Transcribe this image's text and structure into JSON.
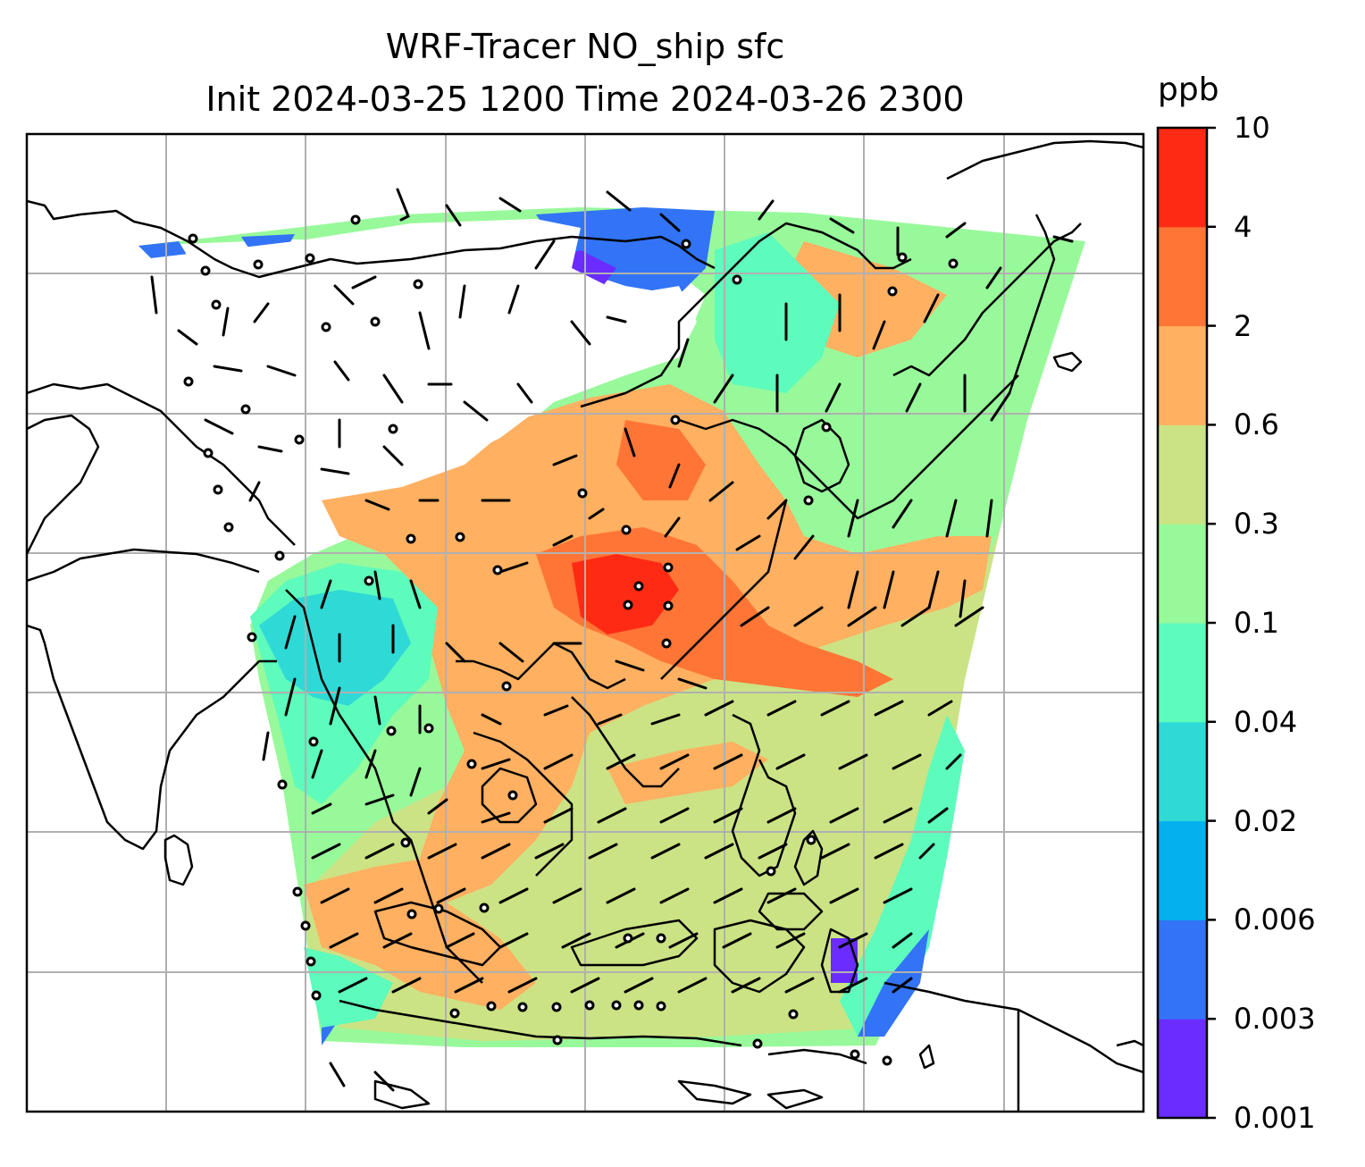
{
  "title": {
    "line1": "WRF-Tracer NO_ship sfc",
    "line2": "Init 2024-03-25 1200 Time 2024-03-26 2300"
  },
  "colorbar": {
    "unit": "ppb",
    "ticks": [
      "0.001",
      "0.003",
      "0.006",
      "0.02",
      "0.04",
      "0.1",
      "0.3",
      "0.6",
      "2",
      "4",
      "10"
    ],
    "colors": [
      "#6a2cff",
      "#3274f5",
      "#05b0ee",
      "#2fd9d6",
      "#5dfbbc",
      "#98f99a",
      "#cbe384",
      "#ffb061",
      "#ff7536",
      "#ff2a14"
    ]
  },
  "map": {
    "field": "NO_ship surface concentration",
    "palette_low_to_high": [
      "#6a2cff",
      "#3274f5",
      "#05b0ee",
      "#2fd9d6",
      "#5dfbbc",
      "#98f99a",
      "#cbe384",
      "#ffb061",
      "#ff7536",
      "#ff2a14"
    ],
    "gridlines": true,
    "coastlines": true,
    "wind_barbs": true
  }
}
